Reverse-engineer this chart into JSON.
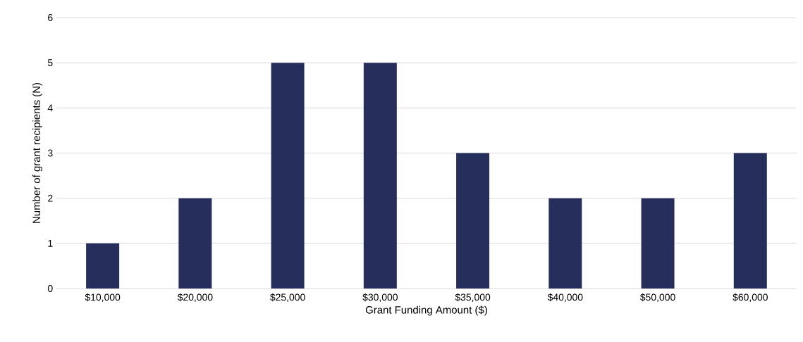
{
  "chart_data": {
    "type": "bar",
    "categories": [
      "$10,000",
      "$20,000",
      "$25,000",
      "$30,000",
      "$35,000",
      "$40,000",
      "$50,000",
      "$60,000"
    ],
    "values": [
      1,
      2,
      5,
      5,
      3,
      2,
      2,
      3
    ],
    "color": "#262f5b",
    "xlabel": "Grant Funding Amount ($)",
    "ylabel": "Number of grant recipients (N)",
    "ylim": [
      0,
      6
    ],
    "yticks": [
      0,
      1,
      2,
      3,
      4,
      5,
      6
    ],
    "grid": "y"
  }
}
